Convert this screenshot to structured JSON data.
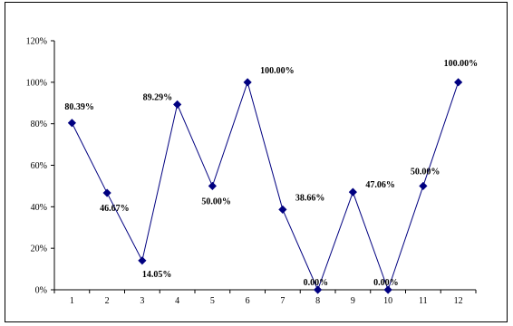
{
  "chart_data": {
    "type": "line",
    "categories": [
      "1",
      "2",
      "3",
      "4",
      "5",
      "6",
      "7",
      "8",
      "9",
      "10",
      "11",
      "12"
    ],
    "series": [
      {
        "values": [
          80.39,
          46.67,
          14.05,
          89.29,
          50.0,
          100.0,
          38.66,
          0.0,
          47.06,
          0.0,
          50.0,
          100.0
        ],
        "data_labels": [
          "80.39%",
          "46.67%",
          "14.05%",
          "89.29%",
          "50.00%",
          "100.00%",
          "38.66%",
          "0.00%",
          "47.06%",
          "0.00%",
          "50.00%",
          "100.00%"
        ]
      }
    ],
    "y_ticks": [
      "0%",
      "20%",
      "40%",
      "60%",
      "80%",
      "100%",
      "120%"
    ],
    "y_tick_values": [
      0,
      20,
      40,
      60,
      80,
      100,
      120
    ],
    "ylim": [
      0,
      120
    ],
    "grid": false,
    "legend": "none",
    "title": "",
    "xlabel": "",
    "ylabel": "",
    "colors": {
      "line": "#000080",
      "marker": "#000080",
      "axis": "#000000",
      "text": "#000000"
    }
  }
}
